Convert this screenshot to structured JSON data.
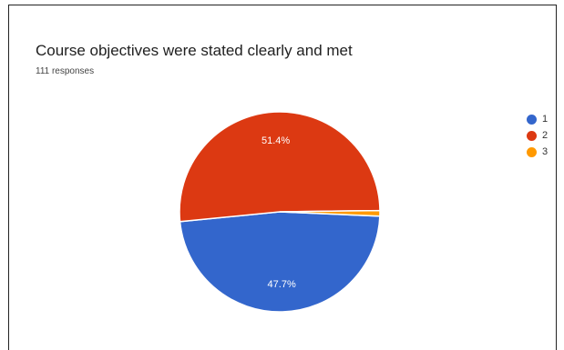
{
  "chart_data": {
    "type": "pie",
    "title": "Course objectives were stated clearly and met",
    "subtitle": "111 responses",
    "categories": [
      "1",
      "2",
      "3"
    ],
    "values": [
      53,
      57,
      1
    ],
    "percent_labels": [
      "47.7%",
      "51.4%",
      ""
    ],
    "colors": [
      "#3366cc",
      "#dc3912",
      "#ff9900"
    ],
    "legend_position": "right"
  }
}
